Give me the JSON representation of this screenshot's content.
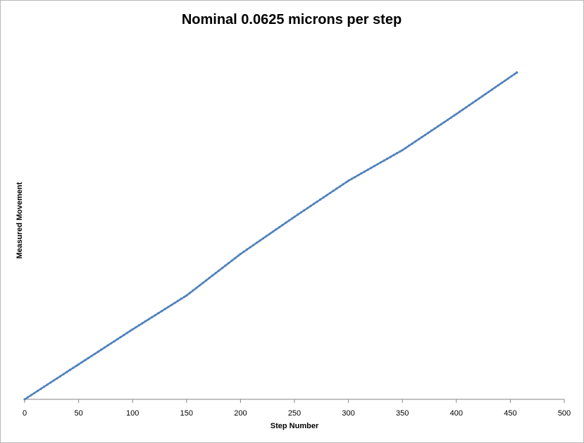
{
  "chart_data": {
    "type": "line",
    "title": "Nominal 0.0625  microns per step",
    "xlabel": "Step Number",
    "ylabel": "Measured Movement",
    "xlim": [
      0,
      500
    ],
    "x_ticks": [
      "0",
      "50",
      "100",
      "150",
      "200",
      "250",
      "300",
      "350",
      "400",
      "450",
      "500"
    ],
    "y_ticks_shown": false,
    "grid": false,
    "legend": "none",
    "series": [
      {
        "color": "#4f81bd",
        "marker": "small-dot",
        "points": [
          [
            0,
            0.0
          ],
          [
            50,
            3.2
          ],
          [
            100,
            6.4
          ],
          [
            150,
            9.5
          ],
          [
            200,
            13.3
          ],
          [
            250,
            16.7
          ],
          [
            300,
            20.0
          ],
          [
            350,
            22.8
          ],
          [
            400,
            26.1
          ],
          [
            456,
            29.9
          ]
        ]
      }
    ],
    "ylim": [
      0,
      29.9
    ]
  }
}
